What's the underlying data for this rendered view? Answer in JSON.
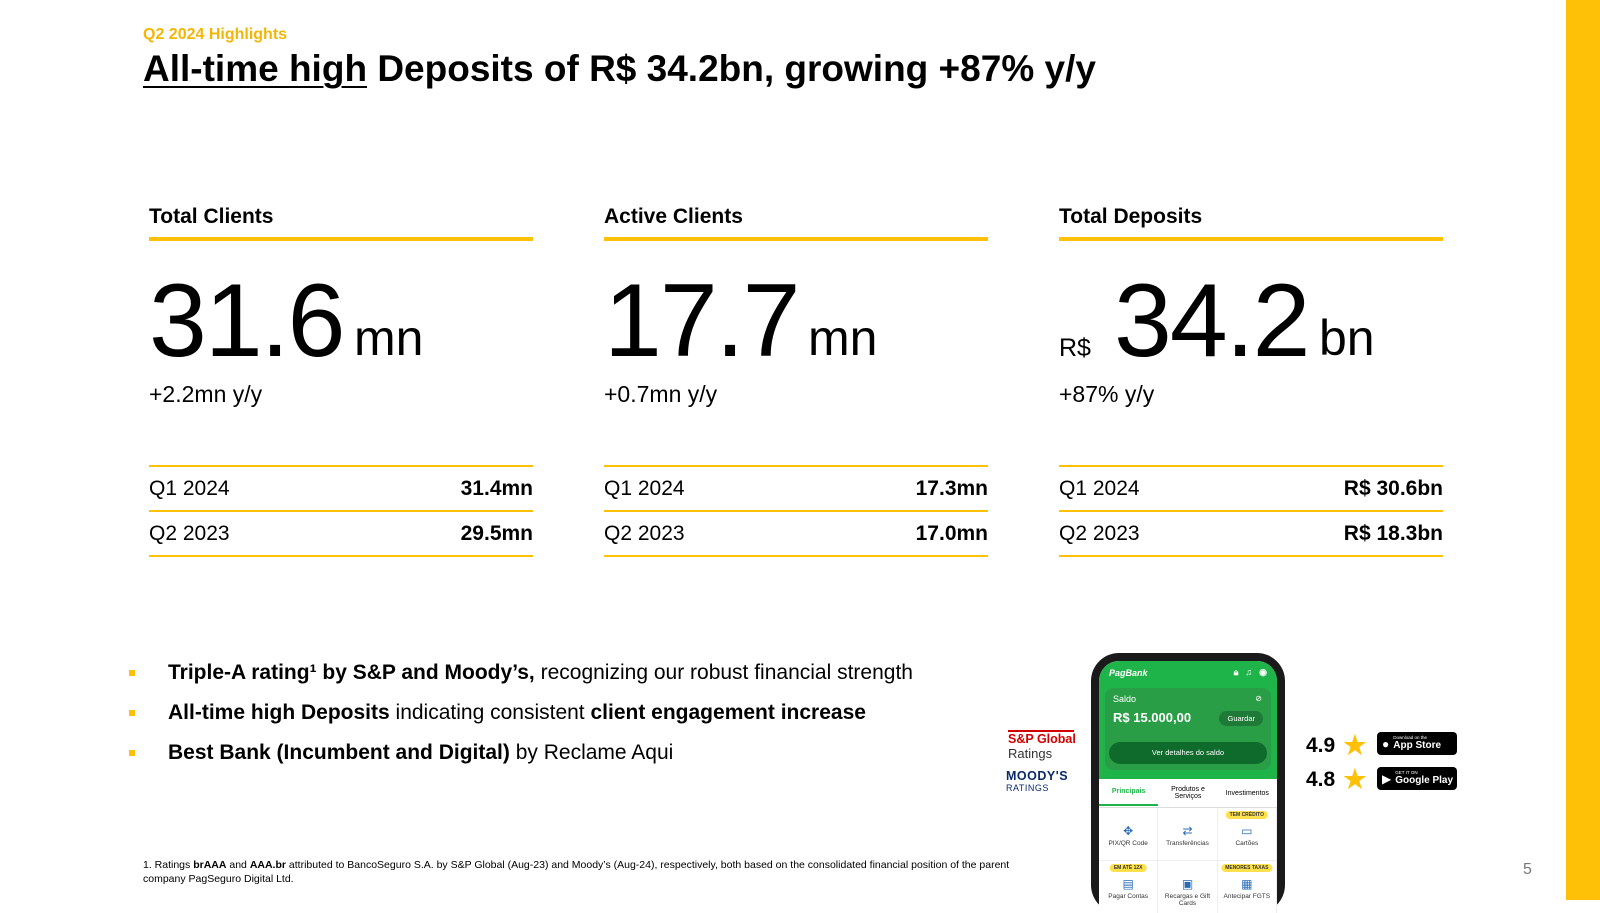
{
  "header": {
    "eyebrow": "Q2 2024 Highlights",
    "title_underlined": "All-time high",
    "title_rest": " Deposits of R$ 34.2bn, growing +87% y/y"
  },
  "kpis": [
    {
      "heading": "Total Clients",
      "prefix": "",
      "value": "31.6",
      "unit": "mn",
      "growth": "+2.2mn y/y",
      "rows": [
        {
          "period": "Q1 2024",
          "value": "31.4mn"
        },
        {
          "period": "Q2 2023",
          "value": "29.5mn"
        }
      ]
    },
    {
      "heading": "Active Clients",
      "prefix": "",
      "value": "17.7",
      "unit": "mn",
      "growth": "+0.7mn y/y",
      "rows": [
        {
          "period": "Q1 2024",
          "value": "17.3mn"
        },
        {
          "period": "Q2 2023",
          "value": "17.0mn"
        }
      ]
    },
    {
      "heading": "Total Deposits",
      "prefix": "R$",
      "value": "34.2",
      "unit": "bn",
      "growth": "+87% y/y",
      "rows": [
        {
          "period": "Q1 2024",
          "value": "R$ 30.6bn"
        },
        {
          "period": "Q2 2023",
          "value": "R$ 18.3bn"
        }
      ]
    }
  ],
  "bullets": [
    {
      "b1": "Triple-A rating¹ by S&P and Moody’s,",
      "t1": " recognizing our robust financial strength",
      "b2": "",
      "t2": ""
    },
    {
      "b1": "All-time high Deposits",
      "t1": " indicating consistent ",
      "b2": "client engagement increase",
      "t2": ""
    },
    {
      "b1": "Best Bank (Incumbent and Digital)",
      "t1": " by Reclame Aqui",
      "b2": "",
      "t2": ""
    }
  ],
  "footnote": {
    "p1": "1. Ratings ",
    "b1": "brAAA",
    "p2": " and ",
    "b2": "AAA.br",
    "p3": " attributed to BancoSeguro S.A. by S&P Global (Aug-23) and Moody’s (Aug-24), respectively, both based on the consolidated financial position of the parent company PagSeguro Digital Ltd."
  },
  "page_number": "5",
  "ratings_logos": {
    "sp_name": "S&P Global",
    "sp_sub": "Ratings",
    "moodys_name": "MOODY'S",
    "moodys_sub": "RATINGS"
  },
  "phone": {
    "app_name": "PagBank",
    "saldo_label": "Saldo",
    "saldo_amount": "R$ 15.000,00",
    "guardar": "Guardar",
    "ver_detalhes": "Ver detalhes do saldo",
    "tabs": [
      "Principais",
      "Produtos e Serviços",
      "Investimentos"
    ],
    "grid": [
      {
        "tag": "",
        "icon": "✥",
        "label": "PIX/QR Code"
      },
      {
        "tag": "",
        "icon": "⇄",
        "label": "Transferências"
      },
      {
        "tag": "TEM CRÉDITO",
        "icon": "▭",
        "label": "Cartões"
      },
      {
        "tag": "EM ATÉ 12X",
        "icon": "▤",
        "label": "Pagar Contas"
      },
      {
        "tag": "",
        "icon": "▣",
        "label": "Recargas e Gift Cards"
      },
      {
        "tag": "MENORES TAXAS",
        "icon": "▦",
        "label": "Antecipar FGTS"
      }
    ]
  },
  "store_ratings": [
    {
      "score": "4.9",
      "badge_small": "Download on the",
      "badge_main": "App Store",
      "badge_icon": "apple-icon"
    },
    {
      "score": "4.8",
      "badge_small": "GET IT ON",
      "badge_main": "Google Play",
      "badge_icon": "google-play-icon"
    }
  ],
  "colors": {
    "accent": "#FFC107",
    "eyebrow": "#F2B705",
    "pagbank_green": "#1FB44A",
    "sp_red": "#D40000",
    "moodys_blue": "#0B2A6B"
  }
}
